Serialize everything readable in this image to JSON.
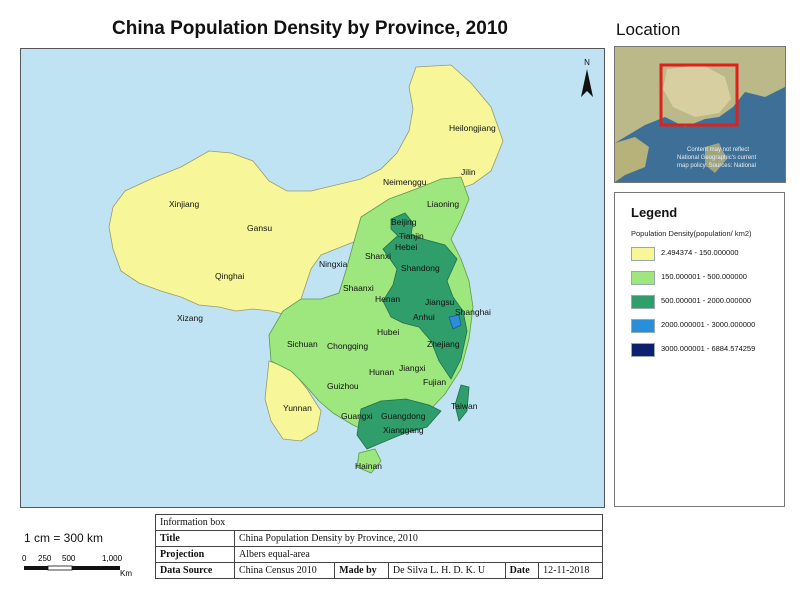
{
  "title": "China Population Density by Province, 2010",
  "location": {
    "title": "Location",
    "credit_lines": [
      "Content may not reflect",
      "National Geographic's current",
      "map policy. Sources: National"
    ]
  },
  "legend": {
    "title": "Legend",
    "subtitle": "Population Density(population/ km2)",
    "items": [
      {
        "label": "2.494374 - 150.000000",
        "color": "#f7f79a"
      },
      {
        "label": "150.000001 - 500.000000",
        "color": "#9ee67e"
      },
      {
        "label": "500.000001 - 2000.000000",
        "color": "#2f9e6b"
      },
      {
        "label": "2000.000001 - 3000.000000",
        "color": "#2a8ed8"
      },
      {
        "label": "3000.000001 - 6884.574259",
        "color": "#0d1f6e"
      }
    ]
  },
  "map": {
    "north_label": "N",
    "provinces": [
      {
        "name": "Heilongjiang",
        "class": 0
      },
      {
        "name": "Jilin",
        "class": 0
      },
      {
        "name": "Liaoning",
        "class": 1
      },
      {
        "name": "Neimenggu",
        "class": 0
      },
      {
        "name": "Xinjiang",
        "class": 0
      },
      {
        "name": "Gansu",
        "class": 0
      },
      {
        "name": "Qinghai",
        "class": 0
      },
      {
        "name": "Xizang",
        "class": 0
      },
      {
        "name": "Ningxia",
        "class": 0
      },
      {
        "name": "Beijing",
        "class": 2
      },
      {
        "name": "Tianjin",
        "class": 2
      },
      {
        "name": "Hebei",
        "class": 1
      },
      {
        "name": "Shanxi",
        "class": 1
      },
      {
        "name": "Shandong",
        "class": 2
      },
      {
        "name": "Henan",
        "class": 2
      },
      {
        "name": "Shaanxi",
        "class": 1
      },
      {
        "name": "Jiangsu",
        "class": 2
      },
      {
        "name": "Anhui",
        "class": 2
      },
      {
        "name": "Shanghai",
        "class": 3
      },
      {
        "name": "Hubei",
        "class": 1
      },
      {
        "name": "Sichuan",
        "class": 1
      },
      {
        "name": "Chongqing",
        "class": 1
      },
      {
        "name": "Zhejiang",
        "class": 2
      },
      {
        "name": "Hunan",
        "class": 1
      },
      {
        "name": "Jiangxi",
        "class": 1
      },
      {
        "name": "Guizhou",
        "class": 1
      },
      {
        "name": "Fujian",
        "class": 1
      },
      {
        "name": "Yunnan",
        "class": 0
      },
      {
        "name": "Guangxi",
        "class": 1
      },
      {
        "name": "Guangdong",
        "class": 2
      },
      {
        "name": "Xianggang",
        "class": 2
      },
      {
        "name": "Taiwan",
        "class": 2
      },
      {
        "name": "Hainan",
        "class": 1
      }
    ]
  },
  "scale": {
    "text": "1 cm = 300 km",
    "ticks": [
      "0",
      "250",
      "500",
      "1,000"
    ],
    "unit": "Km"
  },
  "info_box": {
    "header": "Information box",
    "title_key": "Title",
    "title_value": "China Population Density by Province, 2010",
    "projection_key": "Projection",
    "projection_value": "Albers equal-area",
    "source_key": "Data Source",
    "source_value": "China Census 2010",
    "made_by_key": "Made by",
    "made_by_value": "De Silva L. H. D. K. U",
    "date_key": "Date",
    "date_value": "12-11-2018"
  }
}
